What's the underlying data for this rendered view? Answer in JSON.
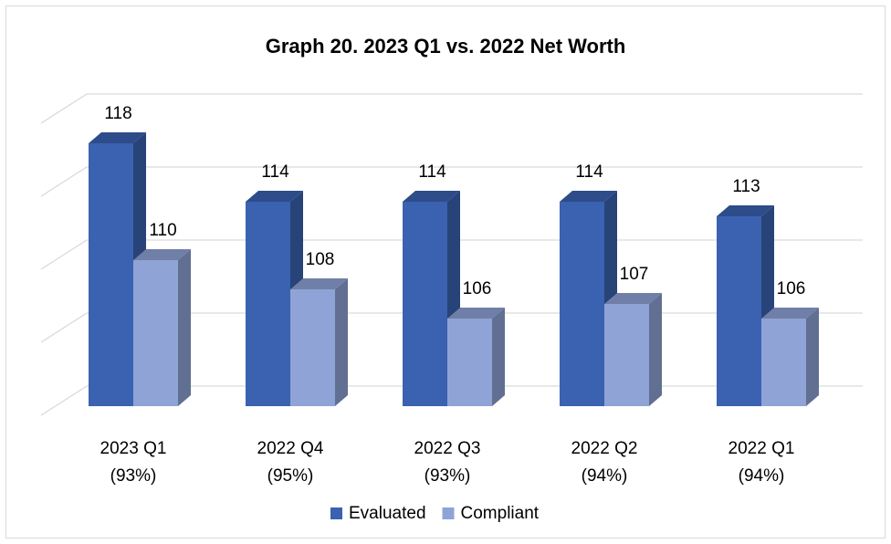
{
  "chart_data": {
    "type": "bar3d",
    "title": "Graph 20. 2023 Q1 vs. 2022 Net Worth",
    "categories": [
      "2023 Q1\n(93%)",
      "2022 Q4\n(95%)",
      "2022 Q3\n(93%)",
      "2022 Q2\n(94%)",
      "2022 Q1\n(94%)"
    ],
    "series": [
      {
        "name": "Evaluated",
        "color": "#3a62b0",
        "values": [
          118,
          114,
          114,
          114,
          113
        ]
      },
      {
        "name": "Compliant",
        "color": "#8fa3d6",
        "values": [
          110,
          108,
          106,
          107,
          106
        ]
      }
    ],
    "ylim": [
      100,
      120
    ],
    "yticks": [
      100,
      105,
      110,
      115,
      120
    ],
    "grid": true,
    "legend": "bottom"
  }
}
